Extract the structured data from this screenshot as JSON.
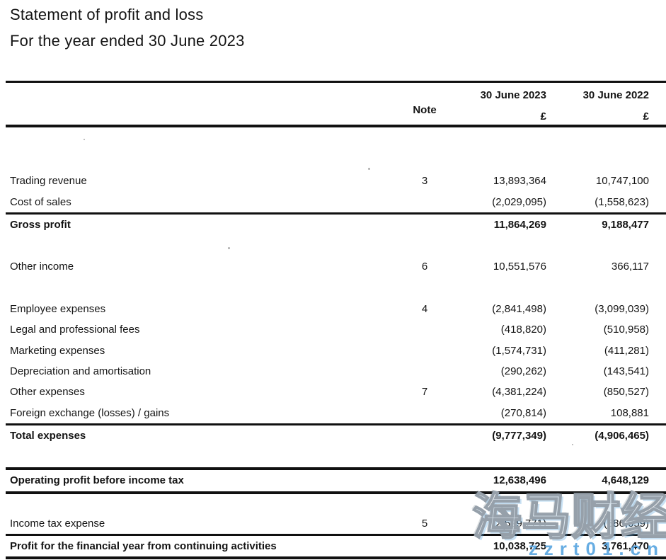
{
  "document": {
    "title": "Statement of profit and loss",
    "subtitle": "For the year ended 30 June 2023"
  },
  "table": {
    "headers": {
      "note": "Note",
      "col_2023": "30 June 2023",
      "col_2022": "30 June 2022",
      "currency_2023": "£",
      "currency_2022": "£"
    },
    "rows": [
      {
        "label": "Trading revenue",
        "note": "3",
        "v2023": "13,893,364",
        "v2022": "10,747,100",
        "bold": false,
        "gap_before": 61,
        "rule_above": "none",
        "rule_below": "none"
      },
      {
        "label": "Cost of sales",
        "note": "",
        "v2023": "(2,029,095)",
        "v2022": "(1,558,623)",
        "bold": false,
        "gap_before": 0,
        "rule_above": "none",
        "rule_below": "none"
      },
      {
        "label": "Gross profit",
        "note": "",
        "v2023": "11,864,269",
        "v2022": "9,188,477",
        "bold": true,
        "gap_before": 0,
        "rule_above": "thin",
        "rule_below": "none"
      },
      {
        "label": "Other income",
        "note": "6",
        "v2023": "10,551,576",
        "v2022": "366,117",
        "bold": false,
        "gap_before": 30,
        "rule_above": "none",
        "rule_below": "none"
      },
      {
        "label": "Employee expenses",
        "note": "4",
        "v2023": "(2,841,498)",
        "v2022": "(3,099,039)",
        "bold": false,
        "gap_before": 30,
        "rule_above": "none",
        "rule_below": "none"
      },
      {
        "label": "Legal and professional fees",
        "note": "",
        "v2023": "(418,820)",
        "v2022": "(510,958)",
        "bold": false,
        "gap_before": 0,
        "rule_above": "none",
        "rule_below": "none"
      },
      {
        "label": "Marketing expenses",
        "note": "",
        "v2023": "(1,574,731)",
        "v2022": "(411,281)",
        "bold": false,
        "gap_before": 0,
        "rule_above": "none",
        "rule_below": "none"
      },
      {
        "label": "Depreciation and amortisation",
        "note": "",
        "v2023": "(290,262)",
        "v2022": "(143,541)",
        "bold": false,
        "gap_before": 0,
        "rule_above": "none",
        "rule_below": "none"
      },
      {
        "label": "Other expenses",
        "note": "7",
        "v2023": "(4,381,224)",
        "v2022": "(850,527)",
        "bold": false,
        "gap_before": 0,
        "rule_above": "none",
        "rule_below": "none"
      },
      {
        "label": "Foreign exchange (losses) / gains",
        "note": "",
        "v2023": "(270,814)",
        "v2022": "108,881",
        "bold": false,
        "gap_before": 0,
        "rule_above": "none",
        "rule_below": "none"
      },
      {
        "label": "Total expenses",
        "note": "",
        "v2023": "(9,777,349)",
        "v2022": "(4,906,465)",
        "bold": true,
        "gap_before": 0,
        "rule_above": "thin",
        "rule_below": "none"
      },
      {
        "label": "Operating profit before income tax",
        "note": "",
        "v2023": "12,638,496",
        "v2022": "4,648,129",
        "bold": true,
        "gap_before": 30,
        "rule_above": "thick",
        "rule_below": "thick"
      },
      {
        "label": "Income tax expense",
        "note": "5",
        "v2023": "(2,599,771)",
        "v2022": "(886,659)",
        "bold": false,
        "gap_before": 27,
        "rule_above": "none",
        "rule_below": "none"
      },
      {
        "label": "Profit for the financial year from continuing activities",
        "note": "",
        "v2023": "10,038,725",
        "v2022": "3,761,470",
        "bold": true,
        "gap_before": 0,
        "rule_above": "thin",
        "rule_below": "thick"
      }
    ]
  },
  "watermark": {
    "text": "海马财经",
    "site": "zzrt01.cn",
    "accent_color": "#5BA7E1"
  }
}
